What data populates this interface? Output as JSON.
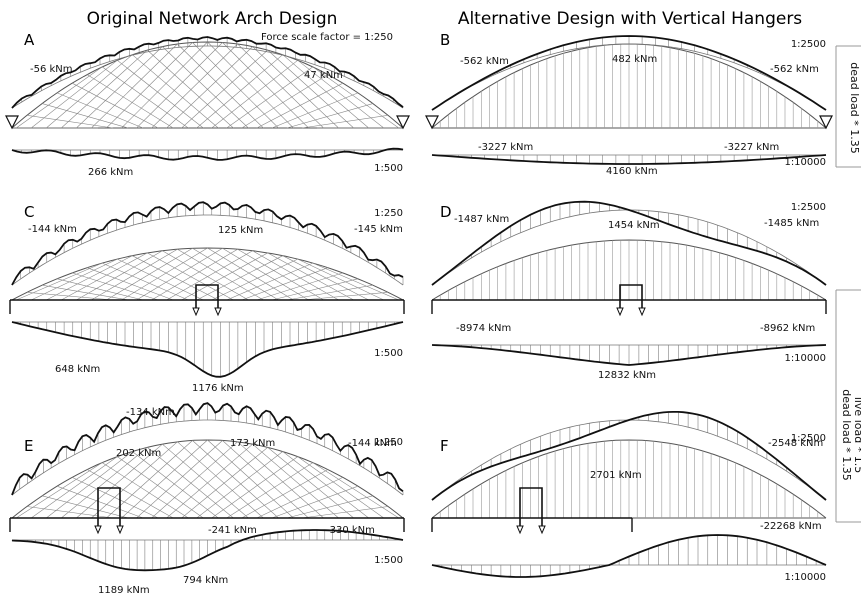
{
  "titles": {
    "left": "Original Network Arch Design",
    "right": "Alternative Design with Vertical Hangers",
    "force_scale": "Force scale factor = 1:250"
  },
  "side_labels": {
    "dead": "dead load * 1.35",
    "live_1": "dead load * 1.35",
    "live_2": "live load * 1.5"
  },
  "panels": [
    {
      "letter": "A",
      "arch_scale": "",
      "tie_scale": "1:500",
      "labels": [
        "-56 kNm",
        "47 kNm",
        "266 kNm"
      ]
    },
    {
      "letter": "B",
      "arch_scale": "1:2500",
      "tie_scale": "1:10000",
      "labels": [
        "-562 kNm",
        "482 kNm",
        "-562 kNm",
        "-3227 kNm",
        "-3227 kNm",
        "4160 kNm"
      ]
    },
    {
      "letter": "C",
      "arch_scale": "1:250",
      "tie_scale": "1:500",
      "labels": [
        "-144 kNm",
        "125 kNm",
        "-145 kNm",
        "648 kNm",
        "1176 kNm"
      ]
    },
    {
      "letter": "D",
      "arch_scale": "1:2500",
      "tie_scale": "1:10000",
      "labels": [
        "-1487 kNm",
        "1454 kNm",
        "-1485 kNm",
        "-8974 kNm",
        "-8962 kNm",
        "12832 kNm"
      ]
    },
    {
      "letter": "E",
      "arch_scale": "1:250",
      "tie_scale": "1:500",
      "labels": [
        "-134 kNm",
        "202 kNm",
        "173 kNm",
        "-144 kNm",
        "-241 kNm",
        "-330 kNm",
        "1189 kNm",
        "794 kNm"
      ]
    },
    {
      "letter": "F",
      "arch_scale": "1:2500",
      "tie_scale": "1:10000",
      "labels": [
        "2701 kNm",
        "-2548 kNm",
        "-22268 kNm"
      ]
    }
  ]
}
